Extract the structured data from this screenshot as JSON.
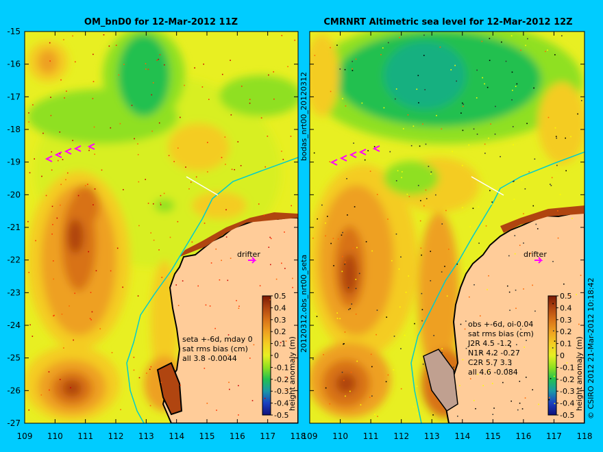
{
  "left_panel": {
    "title": "OM_bnD0 for 12-Mar-2012 11Z",
    "stats_lines": [
      "seta +-6d, mday 0",
      "sat rms bias (cm)",
      "all 3.8 -0.0044"
    ],
    "drifter_label": "drifter",
    "colorbar_label": "height anomaly (m)"
  },
  "right_panel": {
    "title": "CMRNRT Altimetric sea level  for 12-Mar-2012 12Z",
    "stats_lines": [
      "obs +-6d, oi-0.04",
      "sat rms bias (cm)",
      "J2R   4.5 -1.2",
      "N1R   4.2 -0.27",
      "C2R   5.7 3.3",
      "all 4.6 -0.084"
    ],
    "drifter_label": "drifter",
    "colorbar_label": "height anomaly (m)"
  },
  "middle_labels": {
    "top": "bodas_nrt00_20120312",
    "bottom": "20120312.obs_nrt00_seta"
  },
  "credit": "© CSIRO 2012   21-Mar-2012 10:18:42",
  "axes": {
    "lon_ticks": [
      "109",
      "110",
      "111",
      "112",
      "113",
      "114",
      "115",
      "116",
      "117",
      "118"
    ],
    "lat_ticks": [
      "-15",
      "-16",
      "-17",
      "-18",
      "-19",
      "-20",
      "-21",
      "-22",
      "-23",
      "-24",
      "-25",
      "-26",
      "-27"
    ],
    "lon_range": [
      109,
      118
    ],
    "lat_range": [
      -27,
      -15
    ]
  },
  "colorbar": {
    "tick_labels": [
      "0.5",
      "0.4",
      "0.3",
      "0.2",
      "0.1",
      "0",
      "-0.1",
      "-0.2",
      "-0.3",
      "-0.4",
      "-0.5"
    ],
    "colors": [
      "#7a1a05",
      "#a8400c",
      "#cc6612",
      "#e8901c",
      "#f0b020",
      "#f2d81e",
      "#d8ef20",
      "#8fe020",
      "#22c83c",
      "#18b080",
      "#1a8ab8",
      "#1a50c0",
      "#1a1aa8",
      "#10107a"
    ]
  },
  "colors": {
    "background": "#00ccff",
    "land": "#ffcc99",
    "coast": "#000000",
    "isobath": "#00cccc",
    "arrow": "#ff00ff"
  }
}
